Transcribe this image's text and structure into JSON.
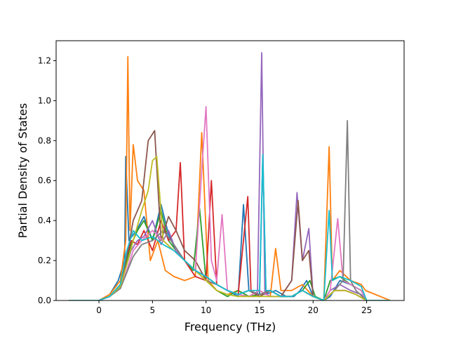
{
  "chart_data": {
    "type": "line",
    "title": "",
    "xlabel": "Frequency (THz)",
    "ylabel": "Partial Density of States",
    "xlim": [
      -4,
      28.5
    ],
    "ylim": [
      0,
      1.3
    ],
    "xticks": [
      0,
      5,
      10,
      15,
      20,
      25
    ],
    "yticks": [
      0.0,
      0.2,
      0.4,
      0.6,
      0.8,
      1.0,
      1.2
    ],
    "xtick_labels": [
      "0",
      "5",
      "10",
      "15",
      "20",
      "25"
    ],
    "ytick_labels": [
      "0.0",
      "0.2",
      "0.4",
      "0.6",
      "0.8",
      "1.0",
      "1.2"
    ],
    "grid": false,
    "legend": "none",
    "series": [
      {
        "color": "#1f77b4",
        "x": [
          -2.8,
          0,
          1,
          1.8,
          2.4,
          2.5,
          2.8,
          3.5,
          4.2,
          5.0,
          5.8,
          6.5,
          7.2,
          8.0,
          9.0,
          10.0,
          11.0,
          12.0,
          13.0,
          13.5,
          14.0,
          15.0,
          15.3,
          15.6,
          16.5,
          17.5,
          18.2,
          18.8,
          19.4,
          20.0,
          21.0,
          21.6,
          22.5,
          23.5,
          24.5,
          25.0,
          27.2
        ],
        "y": [
          0,
          0,
          0.03,
          0.1,
          0.2,
          0.72,
          0.3,
          0.35,
          0.42,
          0.3,
          0.48,
          0.33,
          0.25,
          0.2,
          0.15,
          0.12,
          0.08,
          0.05,
          0.02,
          0.48,
          0.05,
          0.03,
          0.72,
          0.03,
          0.05,
          0.02,
          0.02,
          0.05,
          0.1,
          0.02,
          0,
          0.02,
          0.1,
          0.08,
          0.05,
          0,
          0
        ]
      },
      {
        "color": "#ff7f0e",
        "x": [
          -2.8,
          0,
          1,
          2.0,
          2.5,
          2.7,
          2.9,
          3.2,
          3.6,
          4.2,
          4.8,
          5.5,
          6.2,
          7.0,
          8.0,
          9.0,
          9.6,
          10.2,
          11.0,
          12.0,
          13.0,
          14.0,
          15.0,
          16.0,
          16.5,
          17.0,
          18.0,
          19.0,
          20.0,
          21.0,
          21.5,
          21.8,
          22.5,
          23.5,
          24.5,
          24.9,
          27.2
        ],
        "y": [
          0,
          0,
          0.03,
          0.1,
          0.3,
          1.22,
          0.35,
          0.78,
          0.6,
          0.55,
          0.2,
          0.3,
          0.15,
          0.12,
          0.1,
          0.12,
          0.84,
          0.1,
          0.05,
          0.03,
          0.05,
          0.02,
          0.05,
          0.02,
          0.26,
          0.05,
          0.05,
          0.08,
          0.02,
          0,
          0.77,
          0.1,
          0.15,
          0.1,
          0.08,
          0.05,
          0
        ]
      },
      {
        "color": "#2ca02c",
        "x": [
          -2.8,
          0,
          1,
          2.0,
          2.6,
          3.0,
          3.6,
          4.2,
          5.0,
          5.8,
          6.5,
          7.2,
          8.0,
          8.8,
          9.4,
          10.0,
          11.0,
          12.0,
          13.0,
          14.0,
          15.0,
          16.0,
          17.0,
          18.0,
          19.0,
          19.7,
          20.2,
          21.0,
          21.6,
          22.5,
          23.5,
          24.5,
          25.0,
          27.2
        ],
        "y": [
          0,
          0,
          0.02,
          0.08,
          0.2,
          0.28,
          0.35,
          0.4,
          0.3,
          0.45,
          0.3,
          0.25,
          0.2,
          0.15,
          0.46,
          0.1,
          0.05,
          0.02,
          0.05,
          0.02,
          0.03,
          0.05,
          0.02,
          0.02,
          0.05,
          0.1,
          0.02,
          0,
          0.1,
          0.12,
          0.08,
          0.05,
          0,
          0
        ]
      },
      {
        "color": "#d62728",
        "x": [
          -2.8,
          0,
          1,
          2.0,
          2.6,
          3.0,
          3.6,
          4.2,
          5.0,
          5.8,
          6.5,
          7.2,
          7.6,
          8.0,
          9.0,
          10.0,
          10.5,
          11.0,
          12.0,
          13.0,
          13.9,
          14.2,
          15.0,
          16.0,
          17.0,
          18.0,
          19.0,
          20.0,
          21.0,
          22.0,
          23.0,
          24.0,
          25.0,
          27.2
        ],
        "y": [
          0,
          0,
          0.02,
          0.08,
          0.22,
          0.3,
          0.28,
          0.35,
          0.25,
          0.4,
          0.3,
          0.35,
          0.69,
          0.2,
          0.12,
          0.1,
          0.6,
          0.08,
          0.05,
          0.03,
          0.52,
          0.05,
          0.02,
          0.05,
          0.02,
          0.02,
          0.05,
          0.02,
          0,
          0.05,
          0.05,
          0.03,
          0,
          0
        ]
      },
      {
        "color": "#9467bd",
        "x": [
          -2.8,
          0,
          1,
          2.0,
          2.6,
          3.0,
          3.6,
          4.2,
          5.0,
          5.8,
          6.5,
          7.2,
          8.0,
          9.0,
          10.0,
          11.0,
          12.0,
          13.0,
          14.0,
          14.8,
          15.2,
          15.5,
          16.0,
          17.0,
          18.0,
          18.5,
          19.0,
          19.6,
          20.0,
          21.0,
          21.6,
          22.5,
          23.5,
          24.5,
          25.0,
          27.2
        ],
        "y": [
          0,
          0,
          0.02,
          0.07,
          0.18,
          0.25,
          0.3,
          0.32,
          0.4,
          0.28,
          0.35,
          0.25,
          0.2,
          0.15,
          0.12,
          0.08,
          0.05,
          0.03,
          0.05,
          0.03,
          1.24,
          0.03,
          0.05,
          0.02,
          0.1,
          0.54,
          0.2,
          0.36,
          0.02,
          0,
          0.05,
          0.08,
          0.05,
          0.03,
          0,
          0
        ]
      },
      {
        "color": "#8c564b",
        "x": [
          -2.8,
          0,
          1,
          2.0,
          2.6,
          3.2,
          4.0,
          4.6,
          5.2,
          5.8,
          6.5,
          7.2,
          8.0,
          9.0,
          10.0,
          11.0,
          12.0,
          13.0,
          14.0,
          15.0,
          16.0,
          17.0,
          18.0,
          18.6,
          19.0,
          19.6,
          20.0,
          21.0,
          22.0,
          23.0,
          24.0,
          25.0,
          27.2
        ],
        "y": [
          0,
          0,
          0.02,
          0.08,
          0.22,
          0.4,
          0.5,
          0.8,
          0.85,
          0.3,
          0.42,
          0.35,
          0.25,
          0.2,
          0.1,
          0.08,
          0.05,
          0.03,
          0.05,
          0.02,
          0.05,
          0.02,
          0.1,
          0.5,
          0.2,
          0.25,
          0.02,
          0,
          0.05,
          0.05,
          0.03,
          0,
          0
        ]
      },
      {
        "color": "#e377c2",
        "x": [
          -2.8,
          0,
          1,
          2.0,
          2.6,
          3.2,
          4.0,
          5.0,
          6.0,
          7.0,
          8.0,
          9.0,
          9.6,
          10.0,
          10.5,
          11.0,
          11.5,
          12.0,
          13.0,
          14.0,
          15.0,
          16.0,
          17.0,
          18.0,
          19.0,
          20.0,
          21.0,
          21.6,
          22.3,
          22.8,
          23.5,
          24.5,
          25.0,
          27.2
        ],
        "y": [
          0,
          0,
          0.02,
          0.06,
          0.15,
          0.25,
          0.3,
          0.35,
          0.3,
          0.25,
          0.2,
          0.15,
          0.65,
          0.97,
          0.2,
          0.1,
          0.43,
          0.05,
          0.03,
          0.02,
          0.05,
          0.02,
          0.02,
          0.02,
          0.05,
          0.02,
          0,
          0.05,
          0.41,
          0.1,
          0.08,
          0.05,
          0,
          0
        ]
      },
      {
        "color": "#7f7f7f",
        "x": [
          -2.8,
          0,
          1,
          2.0,
          2.6,
          3.2,
          4.0,
          5.0,
          6.0,
          7.0,
          8.0,
          9.0,
          10.0,
          11.0,
          12.0,
          13.0,
          14.0,
          15.0,
          16.0,
          17.0,
          18.0,
          19.0,
          20.0,
          21.0,
          22.0,
          22.8,
          23.2,
          23.5,
          24.0,
          25.0,
          27.2
        ],
        "y": [
          0,
          0,
          0.02,
          0.06,
          0.14,
          0.22,
          0.28,
          0.3,
          0.35,
          0.28,
          0.2,
          0.15,
          0.1,
          0.08,
          0.05,
          0.03,
          0.05,
          0.03,
          0.05,
          0.02,
          0.02,
          0.05,
          0.02,
          0,
          0.05,
          0.1,
          0.9,
          0.1,
          0.05,
          0,
          0
        ]
      },
      {
        "color": "#bcbd22",
        "x": [
          -2.8,
          0,
          1,
          2.0,
          2.6,
          3.2,
          4.0,
          4.6,
          5.0,
          5.4,
          6.0,
          7.0,
          8.0,
          9.0,
          10.0,
          11.0,
          12.0,
          13.0,
          14.0,
          15.0,
          16.0,
          17.0,
          18.0,
          19.0,
          20.0,
          21.0,
          22.0,
          23.0,
          24.0,
          25.0,
          27.2
        ],
        "y": [
          0,
          0,
          0.02,
          0.07,
          0.18,
          0.3,
          0.45,
          0.55,
          0.7,
          0.72,
          0.3,
          0.25,
          0.2,
          0.15,
          0.1,
          0.05,
          0.03,
          0.02,
          0.02,
          0.02,
          0.02,
          0.02,
          0.02,
          0.05,
          0.02,
          0,
          0.05,
          0.05,
          0.03,
          0,
          0
        ]
      },
      {
        "color": "#17becf",
        "x": [
          -2.8,
          0,
          1,
          2.0,
          2.6,
          3.2,
          4.0,
          5.0,
          6.0,
          7.0,
          8.0,
          9.0,
          10.0,
          11.0,
          12.0,
          13.0,
          14.0,
          15.0,
          15.3,
          15.6,
          16.0,
          17.0,
          18.0,
          19.0,
          20.0,
          21.0,
          21.5,
          21.8,
          22.5,
          23.5,
          24.5,
          25.0,
          27.2
        ],
        "y": [
          0,
          0,
          0.02,
          0.08,
          0.25,
          0.35,
          0.3,
          0.32,
          0.28,
          0.25,
          0.2,
          0.15,
          0.12,
          0.08,
          0.05,
          0.03,
          0.05,
          0.05,
          0.73,
          0.05,
          0.05,
          0.02,
          0.02,
          0.05,
          0.02,
          0,
          0.45,
          0.1,
          0.12,
          0.1,
          0.07,
          0,
          0
        ]
      }
    ]
  }
}
